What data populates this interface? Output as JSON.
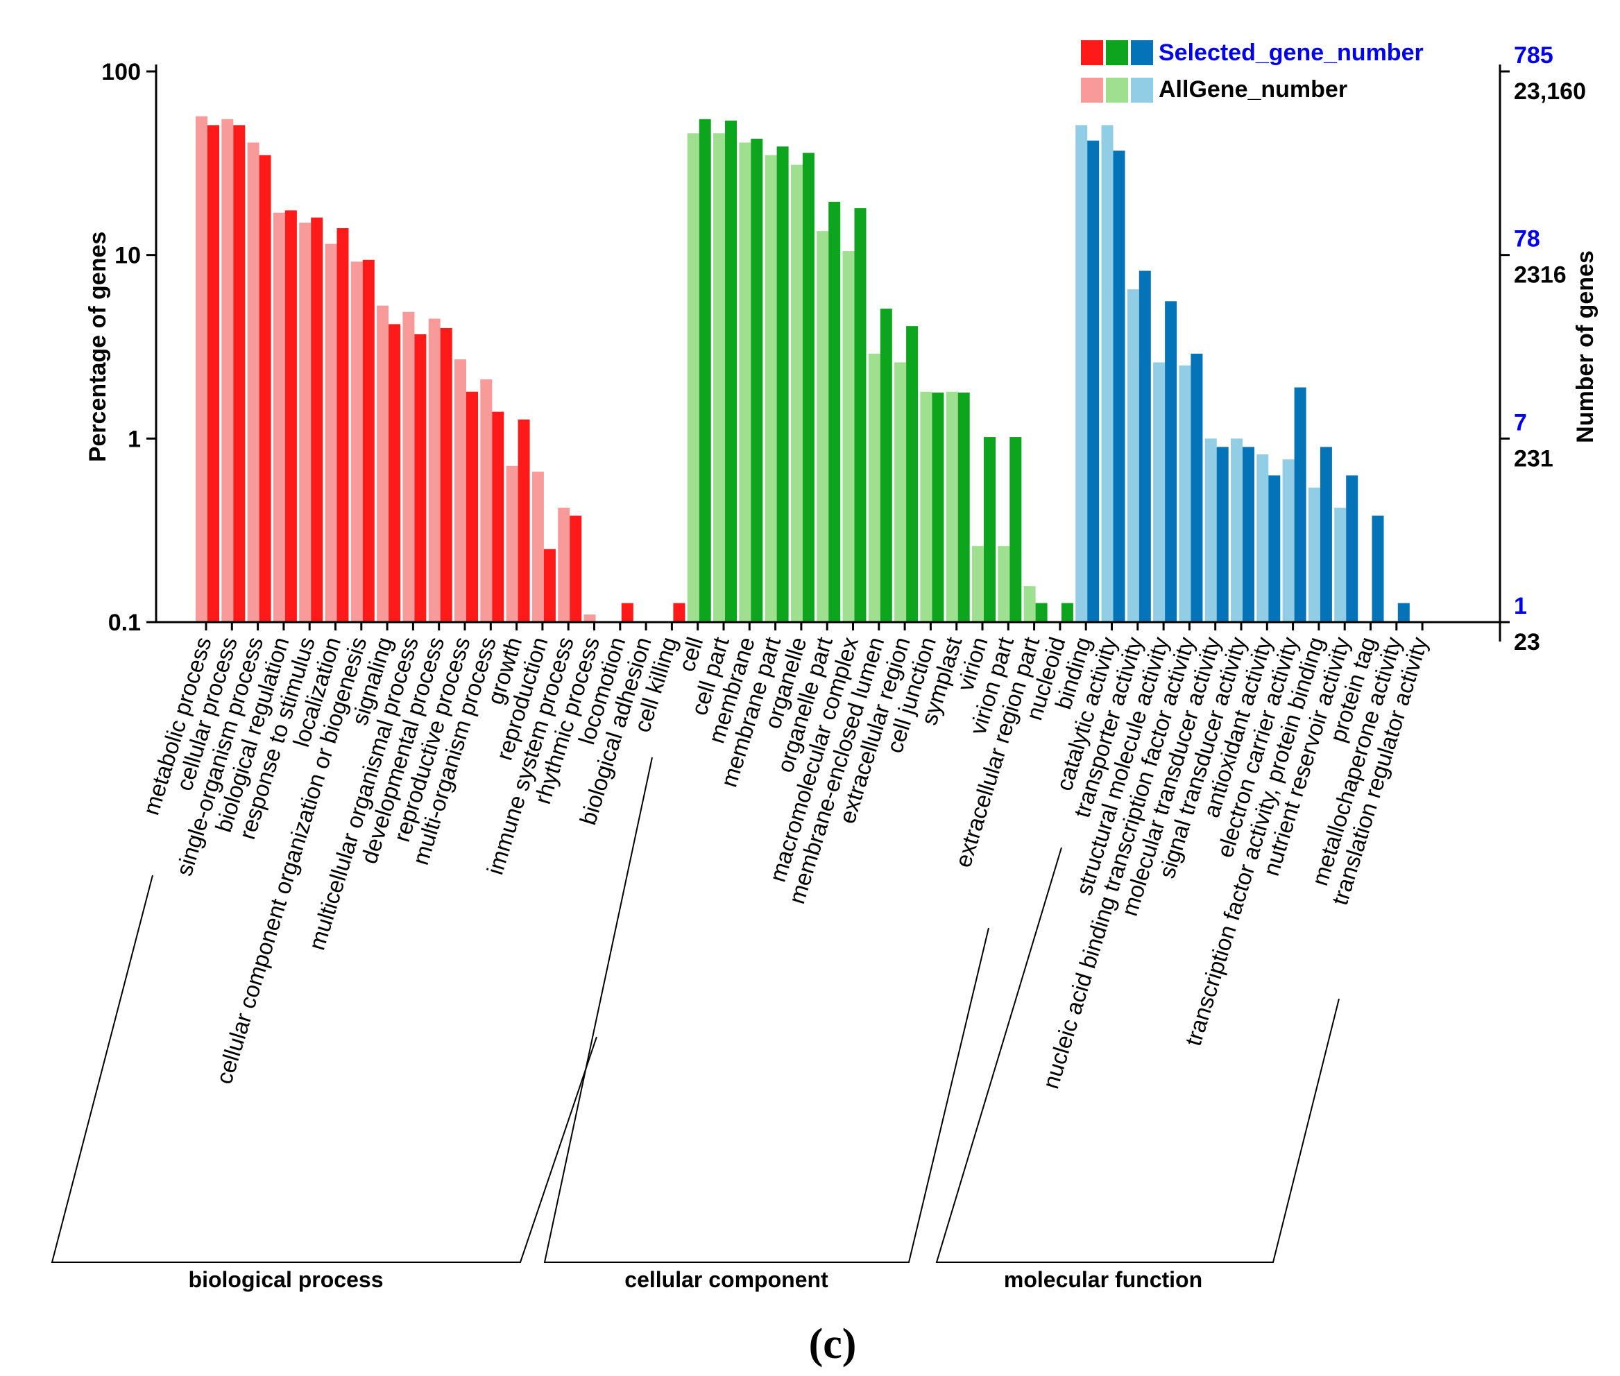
{
  "chart_data": {
    "type": "bar",
    "yscale": "log",
    "ylim": [
      0.1,
      100
    ],
    "ylabel": "Percentage of genes",
    "ylabel_right": "Number of genes",
    "y_ticks": [
      "100",
      "10",
      "1",
      "0.1"
    ],
    "right_axis": [
      {
        "selected": "785",
        "all": "23,160"
      },
      {
        "selected": "78",
        "all": "2316"
      },
      {
        "selected": "7",
        "all": "231"
      },
      {
        "selected": "1",
        "all": "23"
      }
    ],
    "legend": {
      "position": "top-right",
      "selected_label": "Selected_gene_number",
      "all_label": "AllGene_number"
    },
    "colors": {
      "bp_selected": "#ff1a1a",
      "bp_all": "#f89a9a",
      "cc_selected": "#0ea51e",
      "cc_all": "#9ee08f",
      "mf_selected": "#0573b8",
      "mf_all": "#92cde6"
    },
    "groups": [
      {
        "name": "biological process",
        "key": "bp",
        "categories": [
          {
            "label": "metabolic process",
            "all": 57,
            "selected": 51
          },
          {
            "label": "cellular process",
            "all": 55,
            "selected": 51
          },
          {
            "label": "single-organism process",
            "all": 41,
            "selected": 35
          },
          {
            "label": "biological regulation",
            "all": 17,
            "selected": 17.5
          },
          {
            "label": "response to stimulus",
            "all": 15,
            "selected": 16
          },
          {
            "label": "localization",
            "all": 11.5,
            "selected": 14
          },
          {
            "label": "cellular component organization or biogenesis",
            "all": 9.2,
            "selected": 9.4
          },
          {
            "label": "signaling",
            "all": 5.3,
            "selected": 4.2
          },
          {
            "label": "multicellular organismal process",
            "all": 4.9,
            "selected": 3.7
          },
          {
            "label": "developmental process",
            "all": 4.5,
            "selected": 4.0
          },
          {
            "label": "reproductive process",
            "all": 2.7,
            "selected": 1.8
          },
          {
            "label": "multi-organism process",
            "all": 2.1,
            "selected": 1.4
          },
          {
            "label": "growth",
            "all": 0.71,
            "selected": 1.27
          },
          {
            "label": "reproduction",
            "all": 0.66,
            "selected": 0.25
          },
          {
            "label": "immune system process",
            "all": 0.42,
            "selected": 0.38
          },
          {
            "label": "rhythmic process",
            "all": 0.11,
            "selected": null
          },
          {
            "label": "locomotion",
            "all": null,
            "selected": 0.127
          },
          {
            "label": "biological adhesion",
            "all": null,
            "selected": null
          },
          {
            "label": "cell killing",
            "all": null,
            "selected": 0.127
          }
        ]
      },
      {
        "name": "cellular component",
        "key": "cc",
        "categories": [
          {
            "label": "cell",
            "all": 46,
            "selected": 55
          },
          {
            "label": "cell part",
            "all": 46,
            "selected": 54
          },
          {
            "label": "membrane",
            "all": 41,
            "selected": 43
          },
          {
            "label": "membrane part",
            "all": 35,
            "selected": 39
          },
          {
            "label": "organelle",
            "all": 31,
            "selected": 36
          },
          {
            "label": "organelle part",
            "all": 13.5,
            "selected": 19.5
          },
          {
            "label": "macromolecular complex",
            "all": 10.5,
            "selected": 18
          },
          {
            "label": "membrane-enclosed lumen",
            "all": 2.9,
            "selected": 5.1
          },
          {
            "label": "extracellular region",
            "all": 2.6,
            "selected": 4.1
          },
          {
            "label": "cell junction",
            "all": 1.8,
            "selected": 1.78
          },
          {
            "label": "symplast",
            "all": 1.8,
            "selected": 1.78
          },
          {
            "label": "virion",
            "all": 0.26,
            "selected": 1.02
          },
          {
            "label": "virion part",
            "all": 0.26,
            "selected": 1.02
          },
          {
            "label": "extracellular region part",
            "all": 0.157,
            "selected": 0.127
          },
          {
            "label": "nucleoid",
            "all": null,
            "selected": 0.127
          }
        ]
      },
      {
        "name": "molecular function",
        "key": "mf",
        "categories": [
          {
            "label": "binding",
            "all": 51,
            "selected": 42
          },
          {
            "label": "catalytic activity",
            "all": 51,
            "selected": 37
          },
          {
            "label": "transporter activity",
            "all": 6.5,
            "selected": 8.2
          },
          {
            "label": "structural molecule activity",
            "all": 2.6,
            "selected": 5.6
          },
          {
            "label": "nucleic acid binding transcription factor activity",
            "all": 2.5,
            "selected": 2.9
          },
          {
            "label": "molecular transducer activity",
            "all": 1.0,
            "selected": 0.9
          },
          {
            "label": "signal transducer activity",
            "all": 1.0,
            "selected": 0.9
          },
          {
            "label": "antioxidant activity",
            "all": 0.82,
            "selected": 0.63
          },
          {
            "label": "electron carrier activity",
            "all": 0.77,
            "selected": 1.9
          },
          {
            "label": "transcription factor activity, protein binding",
            "all": 0.54,
            "selected": 0.9
          },
          {
            "label": "nutrient reservoir activity",
            "all": 0.42,
            "selected": 0.63
          },
          {
            "label": "protein tag",
            "all": null,
            "selected": 0.38
          },
          {
            "label": "metallochaperone activity",
            "all": null,
            "selected": 0.127
          },
          {
            "label": "translation regulator activity",
            "all": null,
            "selected": null
          }
        ]
      }
    ]
  },
  "caption": "(c)"
}
